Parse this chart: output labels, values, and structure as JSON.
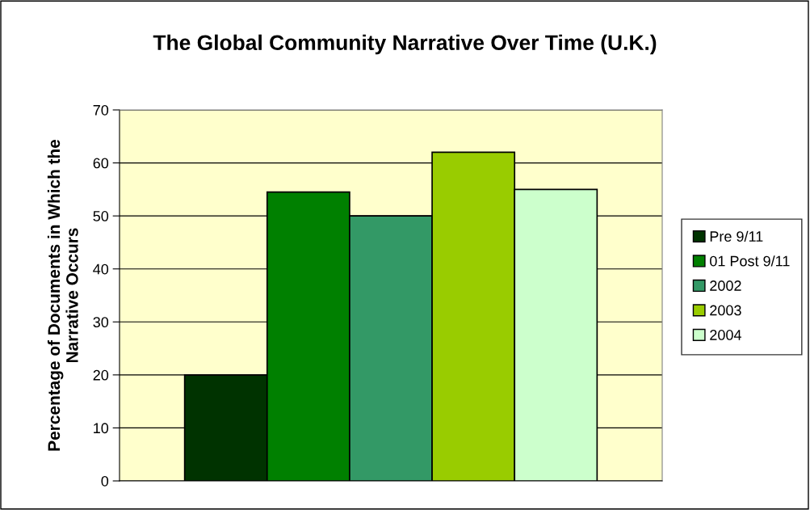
{
  "chart_data": {
    "type": "bar",
    "title": "The Global Community Narrative Over Time (U.K.)",
    "ylabel": "Percentage of Documents in Which the\nNarrative Occurs",
    "categories": [
      null
    ],
    "series": [
      {
        "name": "Pre 9/11",
        "color": "#003300",
        "values": [
          20
        ]
      },
      {
        "name": "01 Post 9/11",
        "color": "#008000",
        "values": [
          54.5
        ]
      },
      {
        "name": "2002",
        "color": "#339966",
        "values": [
          50
        ]
      },
      {
        "name": "2003",
        "color": "#99cc00",
        "values": [
          62
        ]
      },
      {
        "name": "2004",
        "color": "#ccffcc",
        "values": [
          55
        ]
      }
    ],
    "ylim": [
      0,
      70
    ],
    "yticks": [
      0,
      10,
      20,
      30,
      40,
      50,
      60,
      70
    ],
    "grid": "y",
    "legend": "right"
  }
}
